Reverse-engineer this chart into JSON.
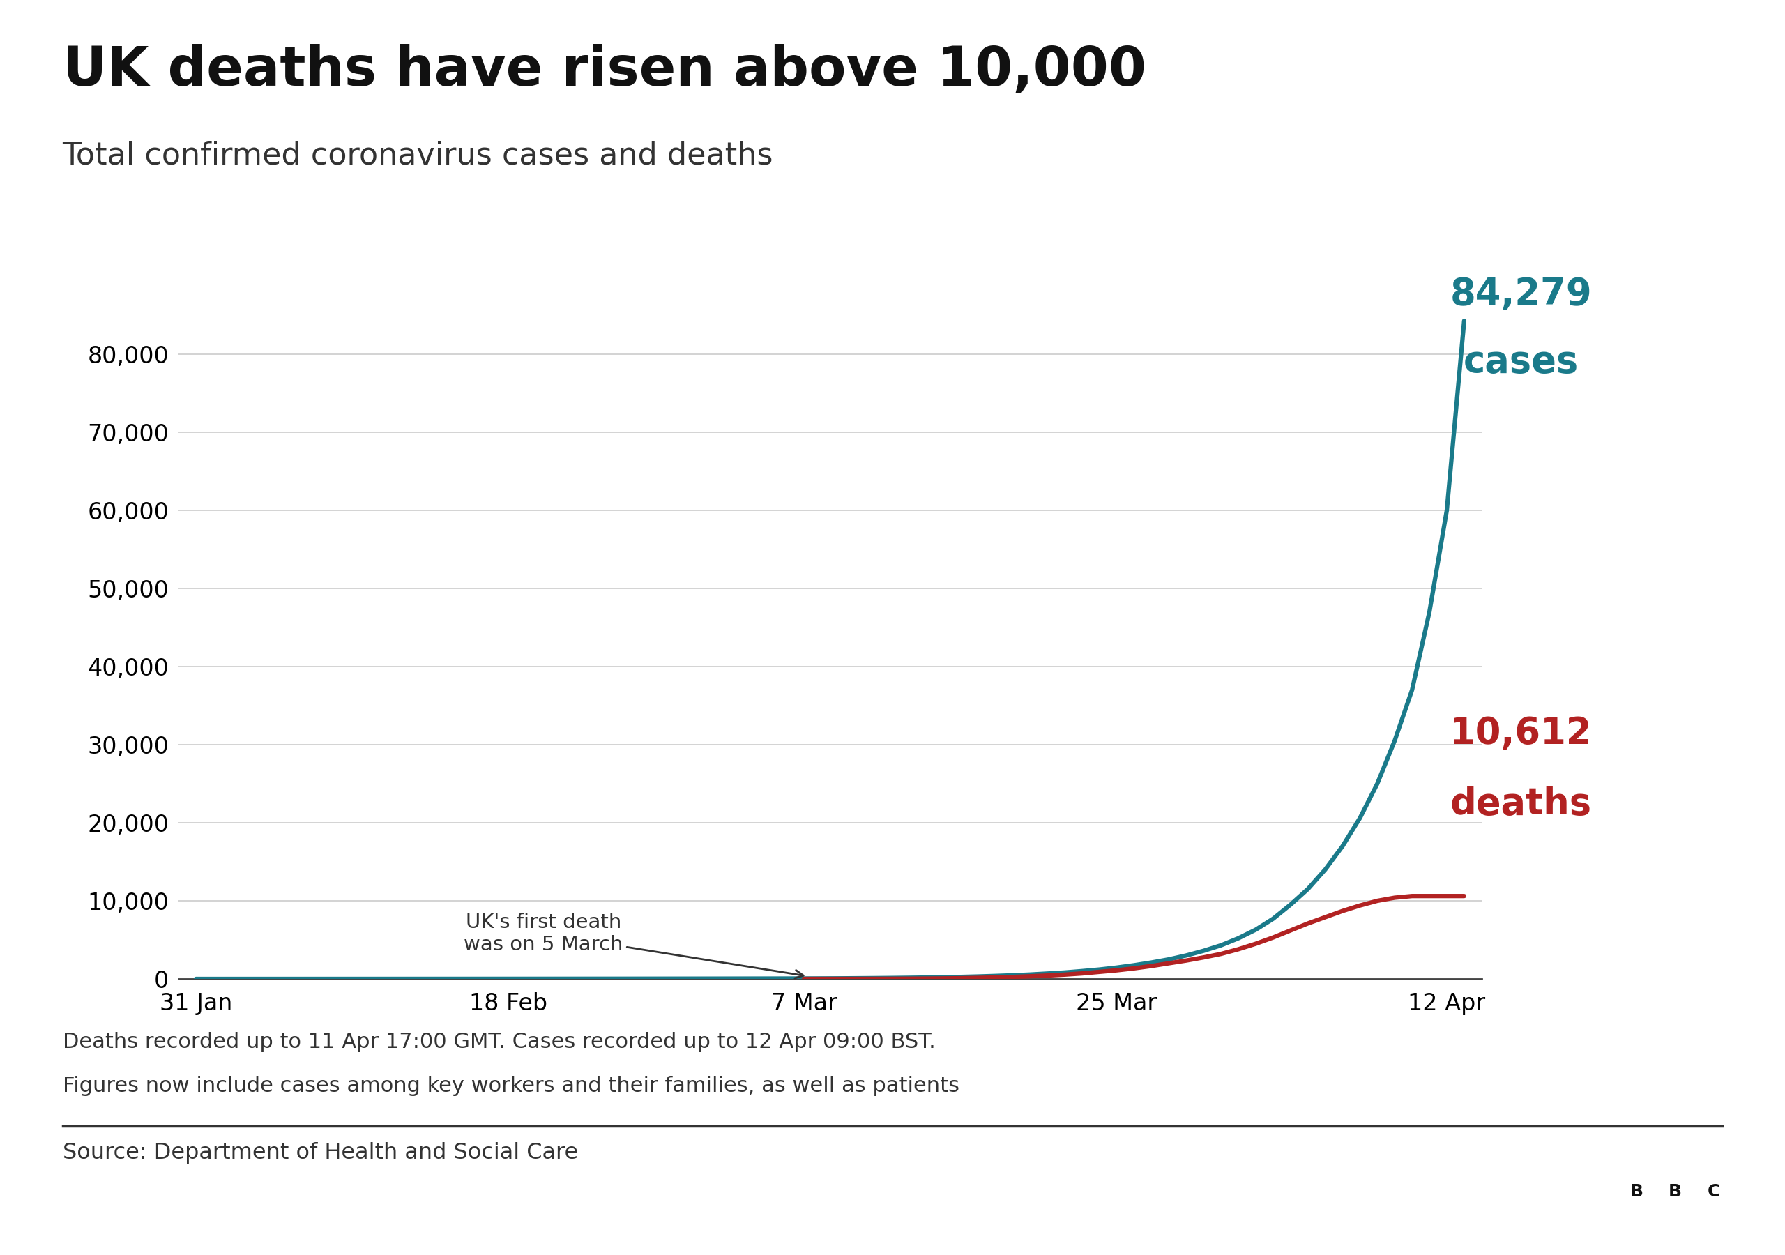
{
  "title": "UK deaths have risen above 10,000",
  "subtitle": "Total confirmed coronavirus cases and deaths",
  "cases_label_line1": "84,279",
  "cases_label_line2": "cases",
  "deaths_label_line1": "10,612",
  "deaths_label_line2": "deaths",
  "cases_color": "#1a7a8a",
  "deaths_color": "#b22222",
  "annotation_text": "UK's first death\nwas on 5 March",
  "footnote_line1": "Deaths recorded up to 11 Apr 17:00 GMT. Cases recorded up to 12 Apr 09:00 BST.",
  "footnote_line2": "Figures now include cases among key workers and their families, as well as patients",
  "source_text": "Source: Department of Health and Social Care",
  "x_tick_labels": [
    "31 Jan",
    "18 Feb",
    "7 Mar",
    "25 Mar",
    "12 Apr"
  ],
  "x_tick_pos": [
    0,
    18,
    35,
    53,
    72
  ],
  "xlim": [
    -1,
    74
  ],
  "ylim_max": 90000,
  "ytick_values": [
    0,
    10000,
    20000,
    30000,
    40000,
    50000,
    60000,
    70000,
    80000
  ],
  "background_color": "#ffffff",
  "grid_color": "#cccccc",
  "cases_data_x": [
    0,
    5,
    10,
    15,
    20,
    25,
    30,
    35,
    36,
    37,
    38,
    39,
    40,
    41,
    42,
    43,
    44,
    45,
    46,
    47,
    48,
    49,
    50,
    51,
    52,
    53,
    54,
    55,
    56,
    57,
    58,
    59,
    60,
    61,
    62,
    63,
    64,
    65,
    66,
    67,
    68,
    69,
    70,
    71,
    72,
    73
  ],
  "cases_data_y": [
    0,
    2,
    5,
    9,
    15,
    23,
    35,
    51,
    60,
    70,
    85,
    100,
    120,
    145,
    175,
    210,
    255,
    310,
    380,
    460,
    560,
    685,
    820,
    1000,
    1200,
    1450,
    1750,
    2100,
    2500,
    3000,
    3600,
    4300,
    5200,
    6300,
    7700,
    9500,
    11500,
    14000,
    17000,
    20600,
    25000,
    30500,
    37000,
    47000,
    60000,
    84279
  ],
  "deaths_data_x": [
    35,
    36,
    37,
    38,
    39,
    40,
    41,
    42,
    43,
    44,
    45,
    46,
    47,
    48,
    49,
    50,
    51,
    52,
    53,
    54,
    55,
    56,
    57,
    58,
    59,
    60,
    61,
    62,
    63,
    64,
    65,
    66,
    67,
    68,
    69,
    70,
    71,
    72,
    73
  ],
  "deaths_data_y": [
    1,
    2,
    3,
    6,
    10,
    16,
    25,
    40,
    60,
    90,
    130,
    180,
    250,
    335,
    430,
    550,
    700,
    900,
    1100,
    1350,
    1650,
    2000,
    2350,
    2750,
    3200,
    3800,
    4500,
    5300,
    6200,
    7100,
    7900,
    8700,
    9400,
    10000,
    10400,
    10612,
    10612,
    10612,
    10612
  ]
}
